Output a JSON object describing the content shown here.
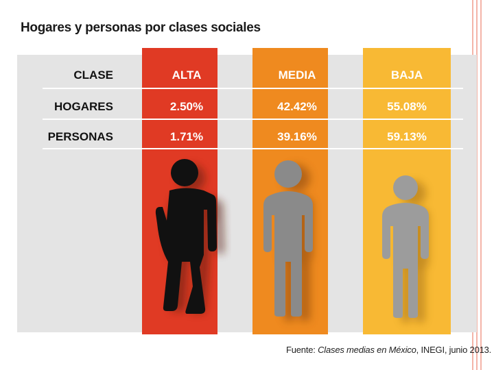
{
  "title": "Hogares y personas por clases sociales",
  "chart_data": {
    "type": "table",
    "header_label": "CLASE",
    "columns": [
      "ALTA",
      "MEDIA",
      "BAJA"
    ],
    "rows": [
      {
        "label": "HOGARES",
        "values": [
          "2.50%",
          "42.42%",
          "55.08%"
        ]
      },
      {
        "label": "PERSONAS",
        "values": [
          "1.71%",
          "39.16%",
          "59.13%"
        ]
      }
    ]
  },
  "colors": {
    "alta": "#e03a24",
    "media": "#ef8a1f",
    "baja": "#f8b934",
    "panel": "#e4e4e4",
    "figure_alta": "#111111",
    "figure_media": "#8a8a8a",
    "figure_baja": "#9c9c9c"
  },
  "icons": [
    "person-leaning-icon",
    "person-standing-icon",
    "person-standing-icon"
  ],
  "source": {
    "prefix": "Fuente: ",
    "title": "Clases medias en México",
    "suffix": ", INEGI, junio 2013."
  }
}
